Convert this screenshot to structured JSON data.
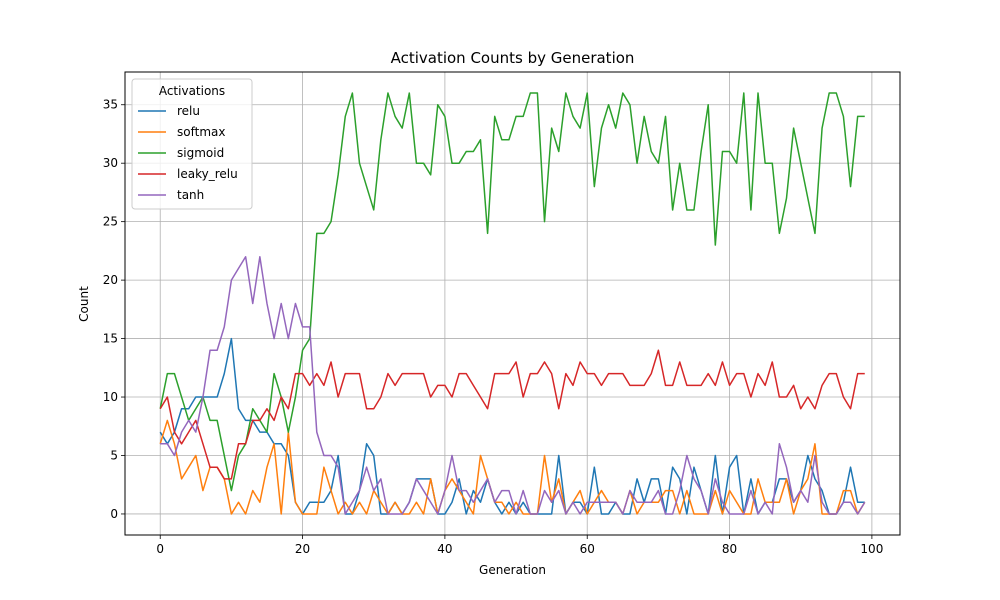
{
  "chart_data": {
    "type": "line",
    "title": "Activation Counts by Generation",
    "xlabel": "Generation",
    "ylabel": "Count",
    "xlim": [
      -4.95,
      103.95
    ],
    "ylim": [
      -1.8,
      37.8
    ],
    "xticks": [
      0,
      20,
      40,
      60,
      80,
      100
    ],
    "yticks": [
      0,
      5,
      10,
      15,
      20,
      25,
      30,
      35
    ],
    "grid": true,
    "legend": {
      "title": "Activations",
      "position": "top-left"
    },
    "x": [
      0,
      1,
      2,
      3,
      4,
      5,
      6,
      7,
      8,
      9,
      10,
      11,
      12,
      13,
      14,
      15,
      16,
      17,
      18,
      19,
      20,
      21,
      22,
      23,
      24,
      25,
      26,
      27,
      28,
      29,
      30,
      31,
      32,
      33,
      34,
      35,
      36,
      37,
      38,
      39,
      40,
      41,
      42,
      43,
      44,
      45,
      46,
      47,
      48,
      49,
      50,
      51,
      52,
      53,
      54,
      55,
      56,
      57,
      58,
      59,
      60,
      61,
      62,
      63,
      64,
      65,
      66,
      67,
      68,
      69,
      70,
      71,
      72,
      73,
      74,
      75,
      76,
      77,
      78,
      79,
      80,
      81,
      82,
      83,
      84,
      85,
      86,
      87,
      88,
      89,
      90,
      91,
      92,
      93,
      94,
      95,
      96,
      97,
      98,
      99
    ],
    "series": [
      {
        "name": "relu",
        "color": "#1f77b4",
        "values": [
          7,
          6,
          7,
          9,
          9,
          10,
          10,
          10,
          10,
          12,
          15,
          9,
          8,
          8,
          7,
          7,
          6,
          6,
          5,
          1,
          0,
          1,
          1,
          1,
          2,
          5,
          0,
          0,
          2,
          6,
          5,
          0,
          0,
          1,
          0,
          1,
          3,
          3,
          3,
          0,
          0,
          1,
          3,
          0,
          2,
          1,
          3,
          1,
          0,
          1,
          0,
          1,
          0,
          0,
          0,
          0,
          5,
          0,
          1,
          1,
          0,
          4,
          0,
          0,
          1,
          0,
          0,
          3,
          1,
          3,
          3,
          0,
          4,
          3,
          0,
          4,
          2,
          0,
          5,
          0,
          4,
          5,
          0,
          3,
          0,
          1,
          1,
          3,
          3,
          1,
          2,
          5,
          3,
          2,
          0,
          0,
          1,
          4,
          1,
          1
        ]
      },
      {
        "name": "softmax",
        "color": "#ff7f0e",
        "values": [
          6,
          8,
          6,
          3,
          4,
          5,
          2,
          4,
          4,
          3,
          0,
          1,
          0,
          2,
          1,
          4,
          6,
          0,
          7,
          1,
          0,
          0,
          0,
          4,
          2,
          0,
          1,
          0,
          1,
          0,
          2,
          1,
          0,
          1,
          0,
          0,
          1,
          0,
          3,
          0,
          2,
          3,
          2,
          1,
          0,
          5,
          3,
          1,
          1,
          0,
          1,
          0,
          0,
          0,
          5,
          1,
          3,
          0,
          1,
          2,
          0,
          1,
          2,
          1,
          1,
          0,
          2,
          0,
          1,
          1,
          1,
          2,
          2,
          0,
          2,
          0,
          0,
          0,
          2,
          0,
          2,
          1,
          0,
          0,
          3,
          1,
          1,
          1,
          3,
          0,
          2,
          3,
          6,
          0,
          0,
          0,
          2,
          2,
          0,
          1
        ]
      },
      {
        "name": "sigmoid",
        "color": "#2ca02c",
        "values": [
          9,
          12,
          12,
          10,
          8,
          9,
          10,
          8,
          8,
          5,
          2,
          5,
          6,
          9,
          8,
          7,
          12,
          10,
          7,
          10,
          14,
          15,
          24,
          24,
          25,
          29,
          34,
          36,
          30,
          28,
          26,
          32,
          36,
          34,
          33,
          36,
          30,
          30,
          29,
          35,
          34,
          30,
          30,
          31,
          31,
          32,
          24,
          34,
          32,
          32,
          34,
          34,
          36,
          36,
          25,
          33,
          31,
          36,
          34,
          33,
          36,
          28,
          33,
          35,
          33,
          36,
          35,
          30,
          34,
          31,
          30,
          34,
          26,
          30,
          26,
          26,
          31,
          35,
          23,
          31,
          31,
          30,
          36,
          26,
          36,
          30,
          30,
          24,
          27,
          33,
          30,
          27,
          24,
          33,
          36,
          36,
          34,
          28,
          34,
          34
        ]
      },
      {
        "name": "leaky_relu",
        "color": "#d62728",
        "values": [
          9,
          10,
          7,
          6,
          7,
          8,
          6,
          4,
          4,
          3,
          3,
          6,
          6,
          8,
          8,
          9,
          8,
          10,
          9,
          12,
          12,
          11,
          12,
          11,
          13,
          10,
          12,
          12,
          12,
          9,
          9,
          10,
          12,
          11,
          12,
          12,
          12,
          12,
          10,
          11,
          11,
          10,
          12,
          12,
          11,
          10,
          9,
          12,
          12,
          12,
          13,
          10,
          12,
          12,
          13,
          12,
          9,
          12,
          11,
          13,
          12,
          12,
          11,
          12,
          12,
          12,
          11,
          11,
          11,
          12,
          14,
          11,
          11,
          13,
          11,
          11,
          11,
          12,
          11,
          13,
          11,
          12,
          12,
          10,
          12,
          11,
          13,
          10,
          10,
          11,
          9,
          10,
          9,
          11,
          12,
          12,
          10,
          9,
          12,
          12
        ]
      },
      {
        "name": "tanh",
        "color": "#9467bd",
        "values": [
          6,
          6,
          5,
          7,
          8,
          7,
          10,
          14,
          14,
          16,
          20,
          21,
          22,
          18,
          22,
          18,
          15,
          18,
          15,
          18,
          16,
          16,
          7,
          5,
          5,
          4,
          0,
          1,
          2,
          4,
          2,
          3,
          0,
          0,
          0,
          1,
          3,
          2,
          1,
          0,
          2,
          5,
          2,
          2,
          1,
          2,
          3,
          1,
          2,
          2,
          0,
          2,
          0,
          0,
          2,
          1,
          2,
          0,
          1,
          0,
          1,
          1,
          1,
          1,
          1,
          0,
          2,
          1,
          1,
          1,
          2,
          0,
          0,
          2,
          5,
          3,
          2,
          0,
          3,
          1,
          0,
          0,
          0,
          2,
          0,
          1,
          0,
          6,
          4,
          1,
          2,
          1,
          5,
          1,
          0,
          0,
          1,
          1,
          0,
          1
        ]
      }
    ]
  }
}
